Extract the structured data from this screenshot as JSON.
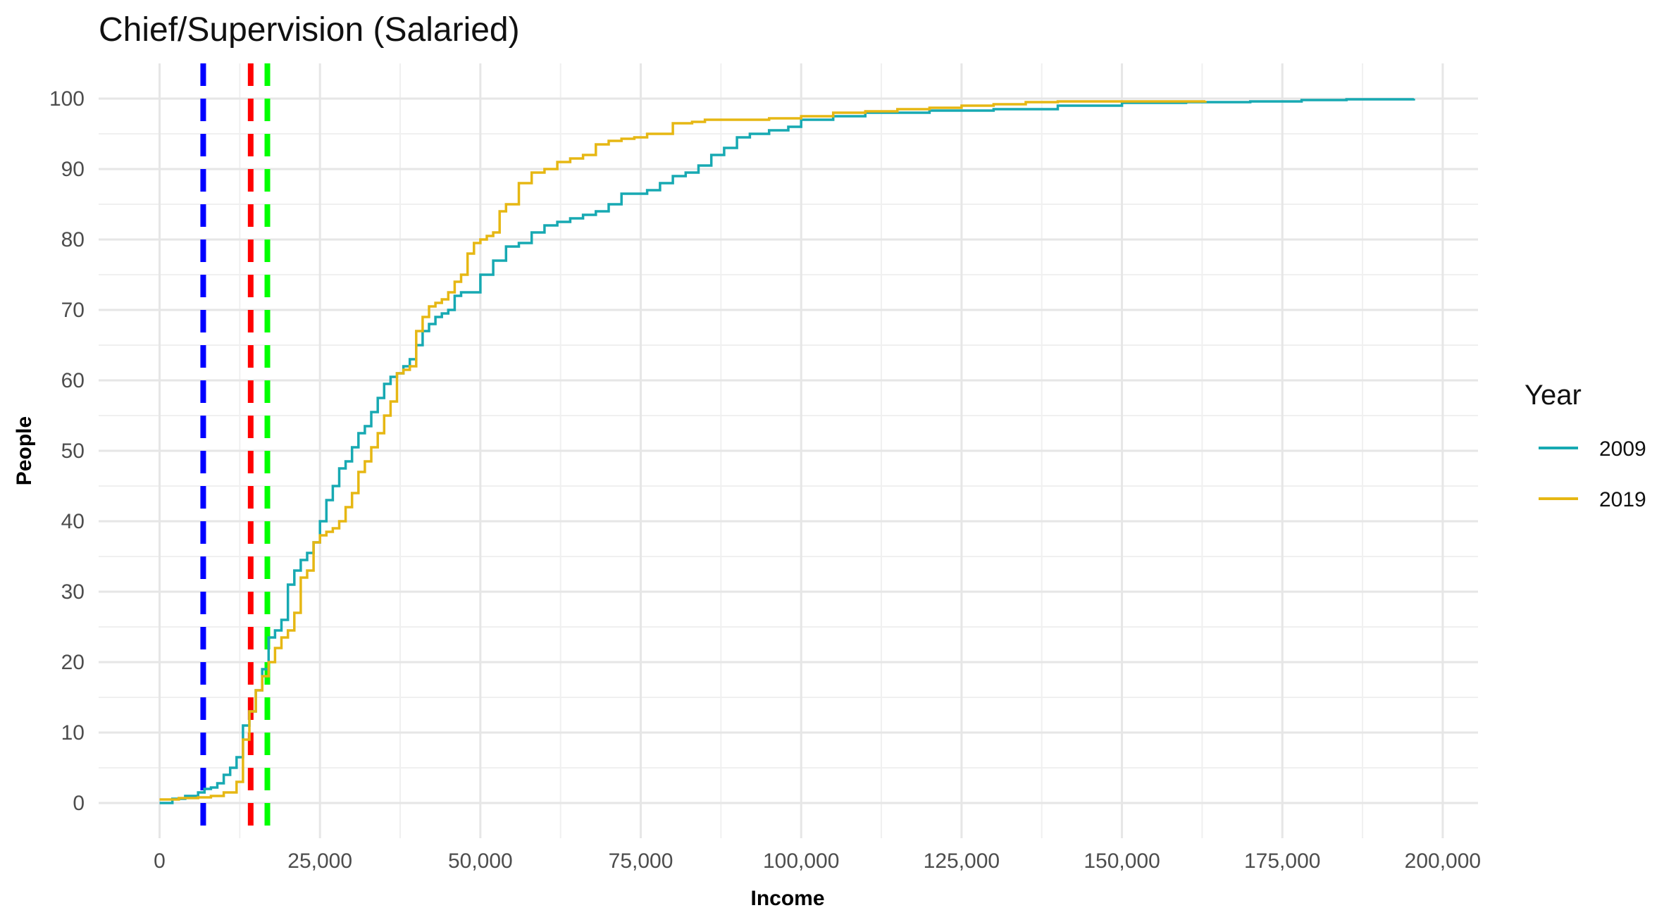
{
  "chart_data": {
    "type": "line",
    "title": "Chief/Supervision (Salaried)",
    "xlabel": "Income",
    "ylabel": "People",
    "xlim": [
      -9500,
      205500
    ],
    "ylim": [
      -5,
      105
    ],
    "x_ticks": [
      0,
      25000,
      50000,
      75000,
      100000,
      125000,
      150000,
      175000,
      200000
    ],
    "x_tick_labels": [
      "0",
      "25,000",
      "50,000",
      "75,000",
      "100,000",
      "125,000",
      "150,000",
      "175,000",
      "200,000"
    ],
    "y_ticks": [
      0,
      10,
      20,
      30,
      40,
      50,
      60,
      70,
      80,
      90,
      100
    ],
    "y_tick_labels": [
      "0",
      "10",
      "20",
      "30",
      "40",
      "50",
      "60",
      "70",
      "80",
      "90",
      "100"
    ],
    "grid": true,
    "legend": {
      "title": "Year",
      "position": "right"
    },
    "series": [
      {
        "name": "2009",
        "color": "#17a9b2",
        "x": [
          0,
          2000,
          4000,
          6000,
          7000,
          8000,
          9000,
          10000,
          11000,
          12000,
          13000,
          14000,
          15000,
          16000,
          17000,
          18000,
          19000,
          20000,
          21000,
          22000,
          23000,
          24000,
          25000,
          26000,
          27000,
          28000,
          29000,
          30000,
          31000,
          32000,
          33000,
          34000,
          35000,
          36000,
          37000,
          38000,
          39000,
          40000,
          41000,
          42000,
          43000,
          44000,
          45000,
          46000,
          47000,
          48000,
          50000,
          52000,
          54000,
          56000,
          58000,
          60000,
          62000,
          64000,
          66000,
          68000,
          70000,
          72000,
          74000,
          76000,
          78000,
          80000,
          82000,
          84000,
          86000,
          88000,
          90000,
          92000,
          95000,
          98000,
          100000,
          105000,
          110000,
          115000,
          120000,
          130000,
          140000,
          150000,
          160000,
          170000,
          178000,
          185000,
          195500
        ],
        "values": [
          0,
          0.6,
          1.0,
          1.5,
          2.0,
          2.2,
          2.8,
          4.0,
          5.0,
          6.5,
          11.0,
          13.0,
          16.0,
          19.0,
          23.5,
          24.5,
          26.0,
          31.0,
          33.0,
          34.5,
          35.5,
          37.0,
          40.0,
          43.0,
          45.0,
          47.5,
          48.5,
          50.5,
          52.5,
          53.5,
          55.5,
          57.5,
          59.5,
          60.5,
          61.0,
          62.0,
          63.0,
          65.0,
          67.0,
          68.0,
          69.0,
          69.5,
          70.0,
          72.0,
          72.5,
          72.5,
          75.0,
          77.0,
          79.0,
          79.5,
          81.0,
          82.0,
          82.5,
          83.0,
          83.5,
          84.0,
          85.0,
          86.5,
          86.5,
          87.0,
          88.0,
          89.0,
          89.5,
          90.5,
          92.0,
          93.0,
          94.5,
          95.0,
          95.5,
          96.0,
          97.0,
          97.5,
          98.0,
          98.0,
          98.3,
          98.5,
          99.0,
          99.4,
          99.5,
          99.6,
          99.8,
          99.9,
          100.0
        ]
      },
      {
        "name": "2019",
        "color": "#e6b713",
        "x": [
          0,
          3000,
          6000,
          8000,
          10000,
          12000,
          13000,
          14000,
          15000,
          16000,
          17000,
          18000,
          19000,
          20000,
          21000,
          22000,
          23000,
          24000,
          25000,
          26000,
          27000,
          28000,
          29000,
          30000,
          31000,
          32000,
          33000,
          34000,
          35000,
          36000,
          37000,
          38000,
          39000,
          40000,
          41000,
          42000,
          43000,
          44000,
          45000,
          46000,
          47000,
          48000,
          49000,
          50000,
          51000,
          52000,
          53000,
          54000,
          56000,
          58000,
          60000,
          62000,
          64000,
          66000,
          68000,
          70000,
          72000,
          74000,
          76000,
          80000,
          83000,
          85000,
          90000,
          95000,
          100000,
          105000,
          110000,
          115000,
          120000,
          125000,
          130000,
          135000,
          140000,
          150000,
          163000
        ],
        "values": [
          0.5,
          0.7,
          0.8,
          1.0,
          1.5,
          3.0,
          9.0,
          13.0,
          16.0,
          18.0,
          20.0,
          22.0,
          23.5,
          24.5,
          27.0,
          32.0,
          33.0,
          37.0,
          38.0,
          38.5,
          39.0,
          40.0,
          42.0,
          44.0,
          47.0,
          48.5,
          50.5,
          52.5,
          55.0,
          57.0,
          61.0,
          61.5,
          62.0,
          67.0,
          69.0,
          70.5,
          71.0,
          71.5,
          72.5,
          74.0,
          75.0,
          78.0,
          79.5,
          80.0,
          80.5,
          81.0,
          84.0,
          85.0,
          88.0,
          89.5,
          90.0,
          91.0,
          91.5,
          92.0,
          93.5,
          94.0,
          94.3,
          94.5,
          95.0,
          96.5,
          96.7,
          97.0,
          97.0,
          97.2,
          97.5,
          98.0,
          98.2,
          98.5,
          98.7,
          99.0,
          99.2,
          99.5,
          99.6,
          99.6,
          99.7
        ]
      }
    ],
    "vlines": [
      {
        "x": 6800,
        "color": "#0000ff"
      },
      {
        "x": 14200,
        "color": "#ff0000"
      },
      {
        "x": 16800,
        "color": "#00ff00"
      }
    ]
  }
}
